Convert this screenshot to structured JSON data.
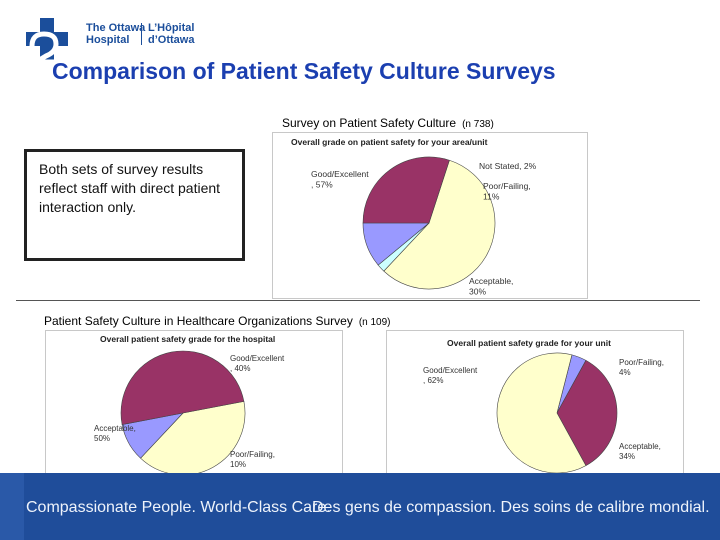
{
  "logo": {
    "en_line1": "The Ottawa",
    "en_line2": "Hospital",
    "fr_line1": "L’Hôpital",
    "fr_line2": "d’Ottawa",
    "color": "#1b4e9b"
  },
  "title": "Comparison of Patient Safety Culture Surveys",
  "survey1": {
    "label": "Survey on Patient Safety Culture",
    "n": "(n 738)"
  },
  "survey2": {
    "label": "Patient Safety Culture in Healthcare Organizations Survey",
    "n": "(n 109)"
  },
  "note": "Both sets of survey results reflect staff with direct patient interaction only.",
  "footer": {
    "en": "Compassionate People. World-Class Care.",
    "fr": "Des gens de compassion. Des soins de calibre mondial.",
    "color": "#1f4d9a"
  },
  "chart_data": [
    {
      "type": "pie",
      "title": "Overall grade on patient safety for your area/unit",
      "slices": [
        {
          "label": "Good/Excellent",
          "value": 57,
          "text": "Good/Excellent\n, 57%",
          "color": "#ffffcc"
        },
        {
          "label": "Not Stated",
          "value": 2,
          "text": "Not Stated, 2%",
          "color": "#ccffff"
        },
        {
          "label": "Poor/Failing",
          "value": 11,
          "text": "Poor/Failing,\n11%",
          "color": "#9999ff"
        },
        {
          "label": "Acceptable",
          "value": 30,
          "text": "Acceptable,\n30%",
          "color": "#993366"
        }
      ]
    },
    {
      "type": "pie",
      "title": "Overall patient safety grade for the hospital",
      "slices": [
        {
          "label": "Good/Excellent",
          "value": 40,
          "text": "Good/Excellent\n, 40%",
          "color": "#ffffcc"
        },
        {
          "label": "Poor/Failing",
          "value": 10,
          "text": "Poor/Failing,\n10%",
          "color": "#9999ff"
        },
        {
          "label": "Acceptable",
          "value": 50,
          "text": "Acceptable,\n50%",
          "color": "#993366"
        }
      ]
    },
    {
      "type": "pie",
      "title": "Overall patient safety grade for your unit",
      "slices": [
        {
          "label": "Poor/Failing",
          "value": 4,
          "text": "Poor/Failing,\n4%",
          "color": "#9999ff"
        },
        {
          "label": "Acceptable",
          "value": 34,
          "text": "Acceptable,\n34%",
          "color": "#993366"
        },
        {
          "label": "Good/Excellent",
          "value": 62,
          "text": "Good/Excellent\n, 62%",
          "color": "#ffffcc"
        }
      ]
    }
  ]
}
